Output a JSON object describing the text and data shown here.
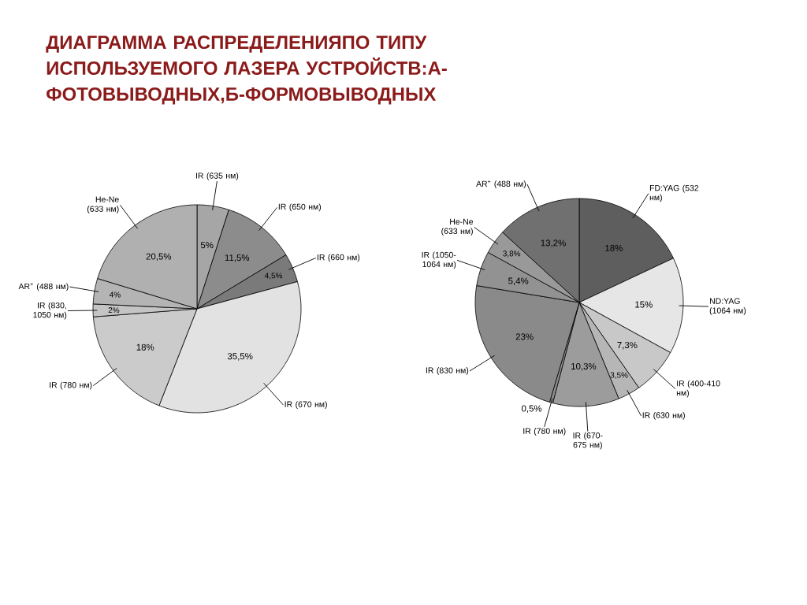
{
  "chart_data": [
    {
      "type": "pie",
      "title": "ДИАГРАММА РАСПРЕДЕЛЕНИЯПО ТИПУ ИСПОЛЬЗУЕМОГО ЛАЗЕРА УСТРОЙСТВ:А-ФОТОВЫВОДНЫХ,Б-ФОРМОВЫВОДНЫХ",
      "categories": [
        "IR (635 нм)",
        "IR (650 нм)",
        "IR (660 нм)",
        "IR (670 нм)",
        "IR (780 нм)",
        "IR (830, 1050 нм)",
        "AR$^{+}$ (488 нм)",
        "He-Ne (633 нм)"
      ],
      "values": [
        5,
        11.5,
        4.5,
        35.5,
        18,
        2,
        4,
        20.5
      ],
      "value_labels": [
        "5%",
        "11,5%",
        "4,5%",
        "35,5%",
        "18%",
        "2%",
        "4%",
        "20,5%"
      ],
      "colors": [
        "#a6a6a6",
        "#8c8c8c",
        "#7a7a7a",
        "#e2e2e2",
        "#cbcbcb",
        "#c4c4c4",
        "#b4b4b4",
        "#b0b0b0"
      ]
    },
    {
      "type": "pie",
      "categories": [
        "FD:YAG (532 нм)",
        "ND:YAG (1064 нм)",
        "IR (400-410 нм)",
        "IR (630 нм)",
        "IR (670-675 нм)",
        "IR (780 нм)",
        "IR (830 нм)",
        "IR (1050-1064 нм)",
        "He-Ne (633 нм)",
        "AR$^{+}$ (488 нм)"
      ],
      "values": [
        18,
        15,
        7.3,
        3.5,
        10.3,
        0.5,
        23,
        5.4,
        3.8,
        13.2
      ],
      "value_labels": [
        "18%",
        "15%",
        "7,3%",
        "3,5%",
        "10,3%",
        "0,5%",
        "23%",
        "5,4%",
        "3,8%",
        "13,2%"
      ],
      "colors": [
        "#5e5e5e",
        "#e6e6e6",
        "#c8c8c8",
        "#b6b6b6",
        "#9c9c9c",
        "#8e8e8e",
        "#8a8a8a",
        "#929292",
        "#999999",
        "#707070"
      ]
    }
  ]
}
